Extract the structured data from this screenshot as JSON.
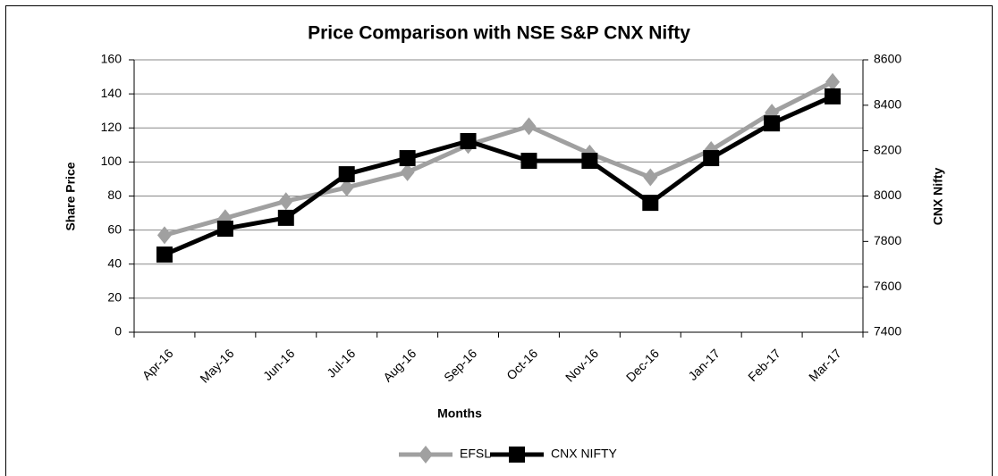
{
  "chart_data": {
    "type": "line",
    "title": "Price Comparison with NSE S&P CNX Nifty",
    "x_label": "Months",
    "y_label": "Share Price",
    "y2_label": "CNX Nifty",
    "categories": [
      "Apr-16",
      "May-16",
      "Jun-16",
      "Jul-16",
      "Aug-16",
      "Sep-16",
      "Oct-16",
      "Nov-16",
      "Dec-16",
      "Jan-17",
      "Feb-17",
      "Mar-17"
    ],
    "series": [
      {
        "name": "EFSL",
        "color": "#a0a0a0",
        "marker": "diamond",
        "values": [
          57,
          67,
          77,
          85,
          94,
          110,
          121,
          105,
          91,
          107,
          129,
          147
        ]
      },
      {
        "name": "CNX NIFTY",
        "color": "#000000",
        "marker": "square",
        "axis": "y2",
        "values": [
          7742,
          7856,
          7904,
          8096,
          8167,
          8242,
          8155,
          8155,
          7970,
          8167,
          8320,
          8439
        ]
      }
    ],
    "ylim": [
      0,
      160
    ],
    "yticks": [
      0,
      20,
      40,
      60,
      80,
      100,
      120,
      140,
      160
    ],
    "y2lim": [
      7400,
      8600
    ],
    "y2ticks": [
      7400,
      7600,
      7800,
      8000,
      8200,
      8400,
      8600
    ],
    "grid": true,
    "legend": "bottom"
  }
}
